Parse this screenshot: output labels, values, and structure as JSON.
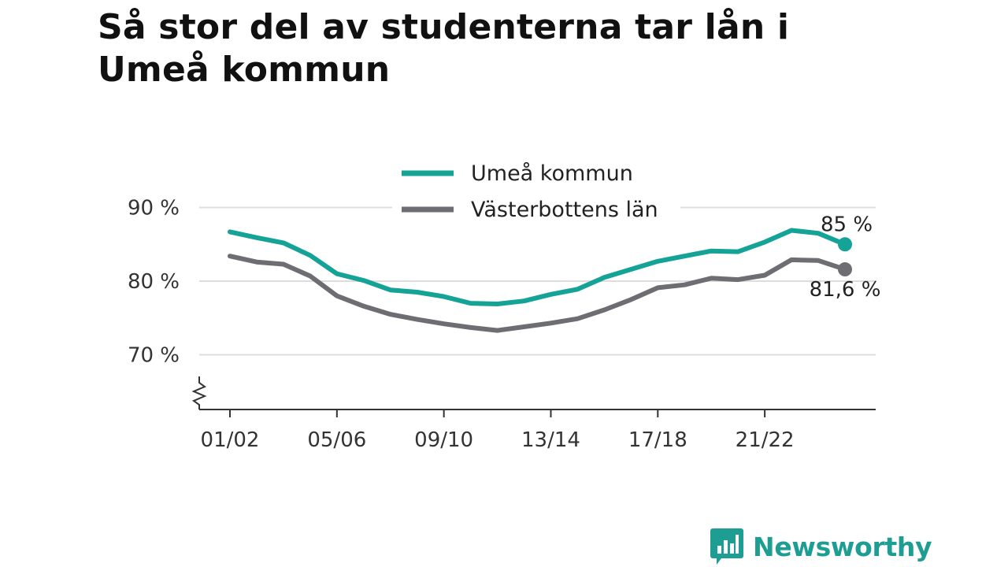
{
  "title": "Så stor del av studenterna tar lån i Umeå kommun",
  "brand": {
    "name": "Newsworthy"
  },
  "colors": {
    "umea": "#14a396",
    "lan": "#6e6d74",
    "grid": "#dddddd",
    "axis": "#333333",
    "brand": "#1e9e93"
  },
  "chart_data": {
    "type": "line",
    "title": "Så stor del av studenterna tar lån i Umeå kommun",
    "x": [
      "01/02",
      "02/03",
      "03/04",
      "04/05",
      "05/06",
      "06/07",
      "07/08",
      "08/09",
      "09/10",
      "10/11",
      "11/12",
      "12/13",
      "13/14",
      "14/15",
      "15/16",
      "16/17",
      "17/18",
      "18/19",
      "19/20",
      "20/21",
      "21/22",
      "22/23",
      "23/24",
      "24/25"
    ],
    "x_ticks": [
      "01/02",
      "05/06",
      "09/10",
      "13/14",
      "17/18",
      "21/22"
    ],
    "y_ticks": [
      "70 %",
      "80 %",
      "90 %"
    ],
    "y_tick_values": [
      70,
      80,
      90
    ],
    "ylim": [
      63,
      92
    ],
    "axis_break": true,
    "grid": true,
    "legend_position": "top-center",
    "series": [
      {
        "name": "Umeå kommun",
        "color": "#14a396",
        "values": [
          86.7,
          85.9,
          85.2,
          83.5,
          81.0,
          80.1,
          78.8,
          78.5,
          77.9,
          77.0,
          76.9,
          77.3,
          78.2,
          78.9,
          80.5,
          81.6,
          82.7,
          83.4,
          84.1,
          84.0,
          85.3,
          86.9,
          86.5,
          85.0
        ],
        "end_label": "85 %"
      },
      {
        "name": "Västerbottens län",
        "color": "#6e6d74",
        "values": [
          83.4,
          82.6,
          82.3,
          80.7,
          78.0,
          76.6,
          75.5,
          74.8,
          74.2,
          73.7,
          73.3,
          73.8,
          74.3,
          74.9,
          76.1,
          77.5,
          79.1,
          79.5,
          80.4,
          80.2,
          80.8,
          82.9,
          82.8,
          81.6
        ],
        "end_label": "81,6 %"
      }
    ]
  }
}
